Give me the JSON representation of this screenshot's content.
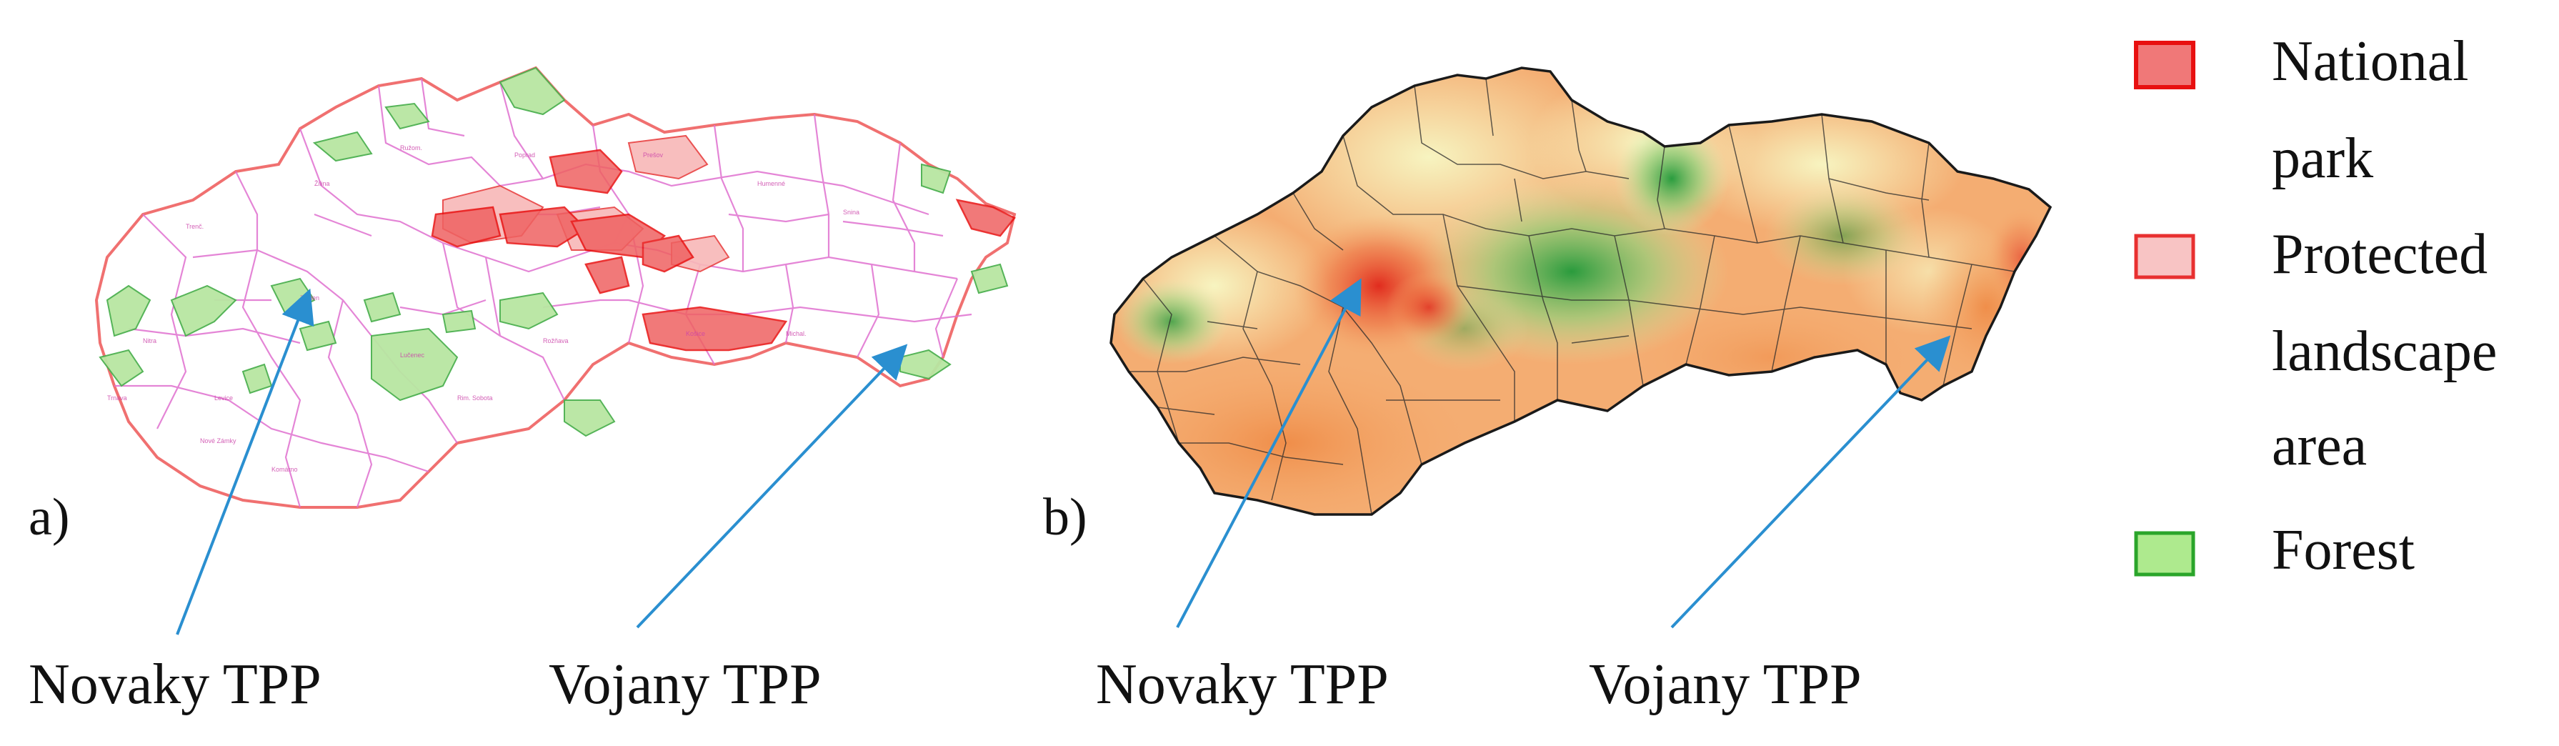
{
  "panels": {
    "a": {
      "label": "a)",
      "plants": {
        "novaky": "Novaky TPP",
        "vojany": "Vojany TPP"
      }
    },
    "b": {
      "label": "b)",
      "plants": {
        "novaky": "Novaky TPP",
        "vojany": "Vojany TPP"
      }
    }
  },
  "legend": {
    "items": [
      {
        "lines": [
          "National",
          "park"
        ],
        "fill": "#f07878",
        "stroke": "#e81010"
      },
      {
        "lines": [
          "Protected",
          "landscape",
          "area"
        ],
        "fill": "#f8c4c4",
        "stroke": "#e83030"
      },
      {
        "lines": [
          "Forest"
        ],
        "fill": "#aeea8e",
        "stroke": "#2aa52a"
      }
    ]
  },
  "colors": {
    "arrow": "#2a8fd0",
    "district_border_a": "#e070d0",
    "outline_a": "#f07070",
    "outline_b": "#1a1a1a",
    "heat_high": "#e8452a",
    "heat_mid": "#f4a86a",
    "heat_low": "#f6f2b8",
    "heat_green": "#2aa84a"
  }
}
